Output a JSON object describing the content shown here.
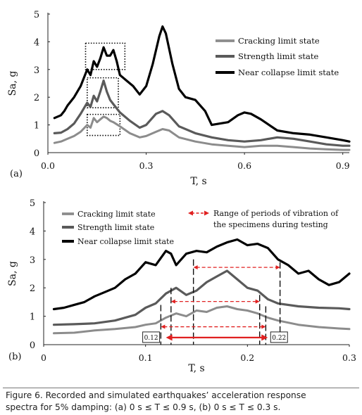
{
  "chart_data": [
    {
      "panel_label": "(a)",
      "type": "line",
      "xlabel": "T,  s",
      "ylabel": "Sa, g",
      "xlim": [
        0,
        0.92
      ],
      "ylim": [
        0,
        5
      ],
      "x_ticks": [
        0.0,
        0.3,
        0.6,
        0.9
      ],
      "x_tick_labels": [
        "0.0",
        "0.3",
        "0.6",
        "0.9"
      ],
      "y_ticks": [
        0,
        1,
        2,
        3,
        4,
        5
      ],
      "y_tick_labels": [
        "0",
        "1",
        "2",
        "3",
        "4",
        "5"
      ],
      "grid": false,
      "legend_position": "top-right",
      "series": [
        {
          "name": "Cracking limit state",
          "color": "#8c8c8c",
          "x": [
            0.02,
            0.04,
            0.06,
            0.08,
            0.1,
            0.12,
            0.13,
            0.14,
            0.15,
            0.16,
            0.17,
            0.18,
            0.19,
            0.2,
            0.22,
            0.25,
            0.28,
            0.3,
            0.33,
            0.35,
            0.37,
            0.4,
            0.45,
            0.5,
            0.55,
            0.6,
            0.65,
            0.7,
            0.75,
            0.8,
            0.85,
            0.9,
            0.92
          ],
          "y": [
            0.35,
            0.4,
            0.5,
            0.6,
            0.75,
            1.0,
            0.9,
            1.25,
            1.1,
            1.2,
            1.3,
            1.25,
            1.15,
            1.1,
            0.95,
            0.7,
            0.55,
            0.6,
            0.75,
            0.85,
            0.8,
            0.55,
            0.4,
            0.3,
            0.25,
            0.2,
            0.25,
            0.25,
            0.2,
            0.15,
            0.12,
            0.1,
            0.1
          ]
        },
        {
          "name": "Strength limit state",
          "color": "#5a5a5a",
          "x": [
            0.02,
            0.04,
            0.06,
            0.08,
            0.1,
            0.12,
            0.13,
            0.14,
            0.15,
            0.16,
            0.17,
            0.18,
            0.19,
            0.2,
            0.22,
            0.25,
            0.28,
            0.3,
            0.33,
            0.35,
            0.37,
            0.4,
            0.45,
            0.5,
            0.55,
            0.6,
            0.65,
            0.7,
            0.75,
            0.8,
            0.85,
            0.9,
            0.92
          ],
          "y": [
            0.7,
            0.72,
            0.85,
            1.05,
            1.4,
            1.8,
            1.65,
            2.05,
            1.85,
            2.2,
            2.6,
            2.2,
            1.9,
            1.75,
            1.45,
            1.15,
            0.9,
            1.0,
            1.4,
            1.5,
            1.35,
            0.95,
            0.7,
            0.55,
            0.45,
            0.4,
            0.45,
            0.55,
            0.5,
            0.4,
            0.3,
            0.25,
            0.25
          ]
        },
        {
          "name": "Near collapse limit state",
          "color": "#000000",
          "x": [
            0.02,
            0.04,
            0.05,
            0.06,
            0.08,
            0.1,
            0.12,
            0.13,
            0.14,
            0.15,
            0.16,
            0.17,
            0.18,
            0.19,
            0.2,
            0.21,
            0.22,
            0.24,
            0.26,
            0.28,
            0.3,
            0.32,
            0.34,
            0.35,
            0.36,
            0.38,
            0.4,
            0.42,
            0.45,
            0.48,
            0.5,
            0.55,
            0.58,
            0.6,
            0.62,
            0.65,
            0.7,
            0.75,
            0.8,
            0.85,
            0.9,
            0.92
          ],
          "y": [
            1.25,
            1.35,
            1.5,
            1.7,
            2.0,
            2.4,
            3.0,
            2.8,
            3.3,
            3.1,
            3.4,
            3.8,
            3.5,
            3.5,
            3.7,
            3.3,
            2.8,
            2.6,
            2.4,
            2.1,
            2.4,
            3.2,
            4.2,
            4.55,
            4.3,
            3.2,
            2.3,
            2.0,
            1.9,
            1.5,
            1.0,
            1.1,
            1.35,
            1.45,
            1.4,
            1.2,
            0.8,
            0.7,
            0.65,
            0.55,
            0.45,
            0.4
          ]
        }
      ]
    },
    {
      "panel_label": "(b)",
      "type": "line",
      "xlabel": "T,  s",
      "ylabel": "Sa, g",
      "xlim": [
        0,
        0.3
      ],
      "ylim": [
        0,
        5
      ],
      "x_ticks": [
        0.0,
        0.1,
        0.2,
        0.3
      ],
      "x_tick_labels": [
        "0",
        "0.1",
        "0.2",
        "0.3"
      ],
      "y_ticks": [
        0,
        1,
        2,
        3,
        4,
        5
      ],
      "y_tick_labels": [
        "0",
        "1",
        "2",
        "3",
        "4",
        "5"
      ],
      "grid": false,
      "legend_position": "top-left",
      "annotations": {
        "range_legend_text": "Range of periods of vibration of the specimens during testing",
        "range_start_label": "0.12",
        "range_end_label": "0.22",
        "range_start": 0.12,
        "range_end": 0.22
      },
      "series": [
        {
          "name": "Cracking limit state",
          "color": "#8c8c8c",
          "x": [
            0.01,
            0.03,
            0.05,
            0.07,
            0.09,
            0.1,
            0.11,
            0.12,
            0.13,
            0.14,
            0.15,
            0.16,
            0.17,
            0.18,
            0.19,
            0.2,
            0.21,
            0.22,
            0.23,
            0.25,
            0.27,
            0.29,
            0.3
          ],
          "y": [
            0.4,
            0.42,
            0.5,
            0.55,
            0.62,
            0.7,
            0.75,
            0.95,
            1.1,
            1.0,
            1.2,
            1.15,
            1.3,
            1.35,
            1.25,
            1.2,
            1.1,
            0.95,
            0.85,
            0.7,
            0.62,
            0.57,
            0.55
          ]
        },
        {
          "name": "Strength limit state",
          "color": "#5a5a5a",
          "x": [
            0.01,
            0.03,
            0.05,
            0.07,
            0.09,
            0.1,
            0.11,
            0.12,
            0.13,
            0.14,
            0.15,
            0.16,
            0.17,
            0.18,
            0.19,
            0.2,
            0.21,
            0.22,
            0.23,
            0.25,
            0.27,
            0.29,
            0.3
          ],
          "y": [
            0.7,
            0.72,
            0.75,
            0.85,
            1.05,
            1.3,
            1.45,
            1.8,
            2.0,
            1.75,
            1.9,
            2.2,
            2.4,
            2.6,
            2.3,
            2.0,
            1.9,
            1.6,
            1.45,
            1.35,
            1.3,
            1.28,
            1.25
          ]
        },
        {
          "name": "Near collapse limit state",
          "color": "#000000",
          "x": [
            0.01,
            0.02,
            0.03,
            0.04,
            0.05,
            0.06,
            0.07,
            0.08,
            0.09,
            0.1,
            0.11,
            0.12,
            0.125,
            0.13,
            0.14,
            0.15,
            0.16,
            0.17,
            0.18,
            0.19,
            0.2,
            0.21,
            0.22,
            0.23,
            0.24,
            0.25,
            0.26,
            0.27,
            0.28,
            0.29,
            0.3
          ],
          "y": [
            1.25,
            1.3,
            1.4,
            1.5,
            1.7,
            1.85,
            2.0,
            2.3,
            2.5,
            2.9,
            2.8,
            3.3,
            3.2,
            2.8,
            3.2,
            3.3,
            3.25,
            3.45,
            3.6,
            3.7,
            3.5,
            3.55,
            3.4,
            3.0,
            2.8,
            2.5,
            2.6,
            2.3,
            2.1,
            2.2,
            2.5
          ]
        }
      ]
    }
  ],
  "caption_lines": [
    "Figure 6. Recorded and simulated earthquakes’ acceleration response",
    "spectra for 5% damping: (a) 0 s ≤ T ≤ 0.9 s, (b) 0 s ≤ T ≤ 0.3 s."
  ]
}
